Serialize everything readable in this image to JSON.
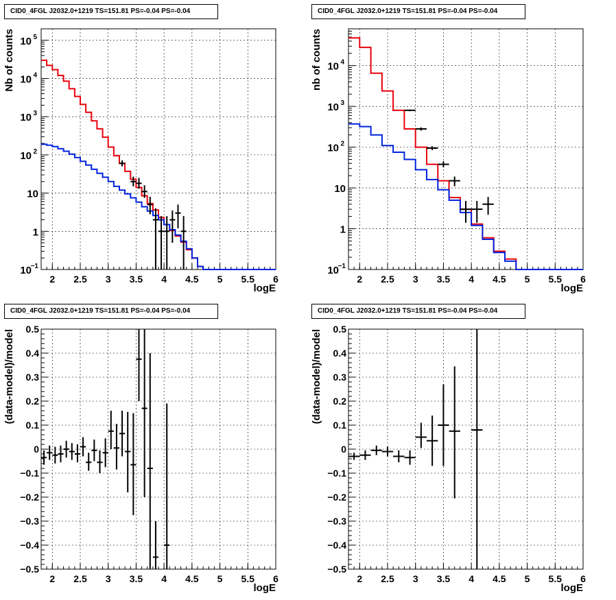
{
  "chart_data": [
    {
      "type": "line",
      "title": "CID0_4FGL J2032.0+1219 TS=151.81 PS=-0.04 PS=-0.04",
      "xlabel": "logE",
      "ylabel": "Nb of counts",
      "xlim": [
        1.8,
        6.0
      ],
      "ylim": [
        0.1,
        200000
      ],
      "yscale": "log",
      "grid": true,
      "x_ticks": [
        "2",
        "2.5",
        "3",
        "3.5",
        "4",
        "4.5",
        "5",
        "5.5",
        "6"
      ],
      "y_ticks": [
        {
          "v": 0.1,
          "base": "10",
          "exp": "−1"
        },
        {
          "v": 1,
          "base": "1",
          "exp": ""
        },
        {
          "v": 10,
          "base": "10",
          "exp": ""
        },
        {
          "v": 100,
          "base": "10",
          "exp": "2"
        },
        {
          "v": 1000,
          "base": "10",
          "exp": "3"
        },
        {
          "v": 10000,
          "base": "10",
          "exp": "4"
        },
        {
          "v": 100000,
          "base": "10",
          "exp": "5"
        }
      ],
      "bin_edges": [
        1.8,
        1.9,
        2.0,
        2.1,
        2.2,
        2.3,
        2.4,
        2.5,
        2.6,
        2.7,
        2.8,
        2.9,
        3.0,
        3.1,
        3.2,
        3.3,
        3.4,
        3.5,
        3.6,
        3.7,
        3.8,
        3.9,
        4.0,
        4.1,
        4.2,
        4.3,
        4.4,
        4.5,
        4.6,
        4.7,
        4.8,
        4.9,
        5.0,
        5.1,
        5.2,
        5.3,
        5.4,
        5.5,
        5.6,
        5.7,
        5.8,
        5.9,
        6.0
      ],
      "series": [
        {
          "color": "#e8000b",
          "values": [
            30000,
            22000,
            17000,
            12000,
            8500,
            5400,
            3400,
            2100,
            1300,
            780,
            480,
            290,
            160,
            95,
            60,
            37,
            23,
            14,
            8.5,
            5.3,
            3.6,
            2.3,
            1.5,
            1.05,
            0.75,
            0.52,
            0.33,
            0.2,
            0.12,
            0.1,
            0.1,
            0.1,
            0.1,
            0.1,
            0.1,
            0.1,
            0.1,
            0.1,
            0.1,
            0.1,
            0.1,
            0.1
          ]
        },
        {
          "color": "#0022dd",
          "values": [
            190,
            180,
            165,
            145,
            125,
            105,
            85,
            68,
            54,
            42,
            33,
            26,
            20,
            15,
            12,
            9.5,
            7.5,
            5.8,
            4.4,
            3.4,
            2.6,
            2.0,
            1.5,
            1.1,
            0.8,
            0.55,
            0.35,
            0.2,
            0.12,
            0.1,
            0.1,
            0.1,
            0.1,
            0.1,
            0.1,
            0.1,
            0.1,
            0.1,
            0.1,
            0.1,
            0.1,
            0.1
          ]
        }
      ],
      "points": [
        {
          "x": 3.25,
          "y": 60,
          "dx": 0.05,
          "lo": 50,
          "hi": 72
        },
        {
          "x": 3.45,
          "y": 20,
          "dx": 0.05,
          "lo": 15,
          "hi": 27
        },
        {
          "x": 3.55,
          "y": 18,
          "dx": 0.05,
          "lo": 13,
          "hi": 25
        },
        {
          "x": 3.65,
          "y": 11,
          "dx": 0.05,
          "lo": 7.5,
          "hi": 16
        },
        {
          "x": 3.75,
          "y": 5,
          "dx": 0.05,
          "lo": 2.8,
          "hi": 8
        },
        {
          "x": 3.85,
          "y": 2,
          "dx": 0.05,
          "lo": 0.1,
          "hi": 4
        },
        {
          "x": 3.95,
          "y": 1,
          "dx": 0.05,
          "lo": 0.1,
          "hi": 2.5
        },
        {
          "x": 4.05,
          "y": 1,
          "dx": 0.05,
          "lo": 0.1,
          "hi": 2.5
        },
        {
          "x": 4.15,
          "y": 2,
          "dx": 0.05,
          "lo": 0.5,
          "hi": 3.5
        },
        {
          "x": 4.25,
          "y": 3,
          "dx": 0.05,
          "lo": 1.2,
          "hi": 5
        },
        {
          "x": 4.35,
          "y": 1,
          "dx": 0.05,
          "lo": 0.1,
          "hi": 2.5
        }
      ]
    },
    {
      "type": "line",
      "title": "CID0_4FGL J2032.0+1219 TS=151.81 PS=-0.04 PS=-0.04",
      "xlabel": "logE",
      "ylabel": "nb of counts",
      "xlim": [
        1.8,
        6.0
      ],
      "ylim": [
        0.1,
        80000
      ],
      "yscale": "log",
      "grid": true,
      "x_ticks": [
        "2",
        "2.5",
        "3",
        "3.5",
        "4",
        "4.5",
        "5",
        "5.5",
        "6"
      ],
      "y_ticks": [
        {
          "v": 0.1,
          "base": "10",
          "exp": "−1"
        },
        {
          "v": 1,
          "base": "1",
          "exp": ""
        },
        {
          "v": 10,
          "base": "10",
          "exp": ""
        },
        {
          "v": 100,
          "base": "10",
          "exp": "2"
        },
        {
          "v": 1000,
          "base": "10",
          "exp": "3"
        },
        {
          "v": 10000,
          "base": "10",
          "exp": "4"
        }
      ],
      "bin_edges": [
        1.8,
        2.0,
        2.2,
        2.4,
        2.6,
        2.8,
        3.0,
        3.2,
        3.4,
        3.6,
        3.8,
        4.0,
        4.2,
        4.4,
        4.6,
        4.8,
        5.0,
        5.2,
        5.4,
        5.6,
        5.8,
        6.0
      ],
      "series": [
        {
          "color": "#e8000b",
          "values": [
            48000,
            28000,
            6500,
            2400,
            800,
            280,
            100,
            38,
            15,
            5.8,
            3.0,
            1.3,
            0.6,
            0.28,
            0.18,
            0.1,
            0.1,
            0.1,
            0.1,
            0.1,
            0.1
          ]
        },
        {
          "color": "#0022dd",
          "values": [
            370,
            320,
            200,
            110,
            75,
            50,
            28,
            16,
            9,
            5,
            2.5,
            1.2,
            0.55,
            0.26,
            0.16,
            0.1,
            0.1,
            0.1,
            0.1,
            0.1,
            0.1
          ]
        }
      ],
      "points": [
        {
          "x": 2.9,
          "y": 800,
          "dx": 0.1,
          "lo": 760,
          "hi": 840
        },
        {
          "x": 3.1,
          "y": 280,
          "dx": 0.1,
          "lo": 255,
          "hi": 305
        },
        {
          "x": 3.3,
          "y": 95,
          "dx": 0.1,
          "lo": 85,
          "hi": 105
        },
        {
          "x": 3.5,
          "y": 38,
          "dx": 0.1,
          "lo": 32,
          "hi": 45
        },
        {
          "x": 3.7,
          "y": 15,
          "dx": 0.1,
          "lo": 11,
          "hi": 19
        },
        {
          "x": 3.9,
          "y": 3,
          "dx": 0.1,
          "lo": 1.4,
          "hi": 4.8
        },
        {
          "x": 4.1,
          "y": 3,
          "dx": 0.1,
          "lo": 1.4,
          "hi": 4.8
        },
        {
          "x": 4.3,
          "y": 4,
          "dx": 0.1,
          "lo": 2.2,
          "hi": 6
        }
      ]
    },
    {
      "type": "scatter",
      "title": "CID0_4FGL J2032.0+1219 TS=151.81 PS=-0.04 PS=-0.04",
      "xlabel": "logE",
      "ylabel": "(data-model)/model",
      "xlim": [
        1.8,
        6.0
      ],
      "ylim": [
        -0.5,
        0.5
      ],
      "grid": true,
      "x_ticks": [
        "2",
        "2.5",
        "3",
        "3.5",
        "4",
        "4.5",
        "5",
        "5.5",
        "6"
      ],
      "y_ticks": [
        "-0.5",
        "-0.4",
        "-0.3",
        "-0.2",
        "-0.1",
        "0",
        "0.1",
        "0.2",
        "0.3",
        "0.4",
        "0.5"
      ],
      "points": [
        {
          "x": 1.85,
          "y": -0.035,
          "dx": 0.05,
          "lo": -0.065,
          "hi": -0.005
        },
        {
          "x": 1.95,
          "y": -0.015,
          "dx": 0.05,
          "lo": -0.045,
          "hi": 0.015
        },
        {
          "x": 2.05,
          "y": -0.025,
          "dx": 0.05,
          "lo": -0.06,
          "hi": 0.01
        },
        {
          "x": 2.15,
          "y": -0.02,
          "dx": 0.05,
          "lo": -0.055,
          "hi": 0.015
        },
        {
          "x": 2.25,
          "y": 0.0,
          "dx": 0.05,
          "lo": -0.035,
          "hi": 0.035
        },
        {
          "x": 2.35,
          "y": -0.01,
          "dx": 0.05,
          "lo": -0.045,
          "hi": 0.025
        },
        {
          "x": 2.45,
          "y": -0.02,
          "dx": 0.05,
          "lo": -0.055,
          "hi": 0.02
        },
        {
          "x": 2.55,
          "y": 0.01,
          "dx": 0.05,
          "lo": -0.03,
          "hi": 0.05
        },
        {
          "x": 2.65,
          "y": -0.055,
          "dx": 0.05,
          "lo": -0.09,
          "hi": -0.015
        },
        {
          "x": 2.75,
          "y": -0.005,
          "dx": 0.05,
          "lo": -0.05,
          "hi": 0.04
        },
        {
          "x": 2.85,
          "y": -0.055,
          "dx": 0.05,
          "lo": -0.1,
          "hi": -0.005
        },
        {
          "x": 2.95,
          "y": -0.015,
          "dx": 0.05,
          "lo": -0.075,
          "hi": 0.045
        },
        {
          "x": 3.05,
          "y": 0.075,
          "dx": 0.05,
          "lo": 0.0,
          "hi": 0.16
        },
        {
          "x": 3.15,
          "y": 0.005,
          "dx": 0.05,
          "lo": -0.085,
          "hi": 0.105
        },
        {
          "x": 3.25,
          "y": 0.065,
          "dx": 0.05,
          "lo": -0.03,
          "hi": 0.16
        },
        {
          "x": 3.35,
          "y": -0.01,
          "dx": 0.05,
          "lo": -0.18,
          "hi": 0.155
        },
        {
          "x": 3.45,
          "y": -0.065,
          "dx": 0.05,
          "lo": -0.275,
          "hi": 0.15
        },
        {
          "x": 3.55,
          "y": 0.375,
          "dx": 0.05,
          "lo": 0.2,
          "hi": 0.5
        },
        {
          "x": 3.65,
          "y": 0.17,
          "dx": 0.05,
          "lo": -0.2,
          "hi": 0.5
        },
        {
          "x": 3.75,
          "y": -0.08,
          "dx": 0.05,
          "lo": -0.5,
          "hi": 0.4
        },
        {
          "x": 3.85,
          "y": -0.45,
          "dx": 0.05,
          "lo": -0.5,
          "hi": -0.3
        },
        {
          "x": 4.05,
          "y": -0.4,
          "dx": 0.05,
          "lo": -0.5,
          "hi": 0.19
        }
      ]
    },
    {
      "type": "scatter",
      "title": "CID0_4FGL J2032.0+1219 TS=151.81 PS=-0.04 PS=-0.04",
      "xlabel": "logE",
      "ylabel": "(data-model)/model",
      "xlim": [
        1.8,
        6.0
      ],
      "ylim": [
        -0.5,
        0.5
      ],
      "grid": true,
      "x_ticks": [
        "2",
        "2.5",
        "3",
        "3.5",
        "4",
        "4.5",
        "5",
        "5.5",
        "6"
      ],
      "y_ticks": [
        "-0.5",
        "-0.4",
        "-0.3",
        "-0.2",
        "-0.1",
        "0",
        "0.1",
        "0.2",
        "0.3",
        "0.4",
        "0.5"
      ],
      "points": [
        {
          "x": 1.9,
          "y": -0.03,
          "dx": 0.1,
          "lo": -0.045,
          "hi": -0.015
        },
        {
          "x": 2.1,
          "y": -0.025,
          "dx": 0.1,
          "lo": -0.045,
          "hi": -0.005
        },
        {
          "x": 2.3,
          "y": -0.005,
          "dx": 0.1,
          "lo": -0.025,
          "hi": 0.015
        },
        {
          "x": 2.5,
          "y": -0.01,
          "dx": 0.1,
          "lo": -0.03,
          "hi": 0.01
        },
        {
          "x": 2.7,
          "y": -0.03,
          "dx": 0.1,
          "lo": -0.055,
          "hi": -0.005
        },
        {
          "x": 2.9,
          "y": -0.035,
          "dx": 0.1,
          "lo": -0.065,
          "hi": -0.005
        },
        {
          "x": 3.1,
          "y": 0.05,
          "dx": 0.1,
          "lo": 0.005,
          "hi": 0.11
        },
        {
          "x": 3.3,
          "y": 0.035,
          "dx": 0.1,
          "lo": -0.07,
          "hi": 0.14
        },
        {
          "x": 3.5,
          "y": 0.1,
          "dx": 0.1,
          "lo": -0.07,
          "hi": 0.27
        },
        {
          "x": 3.7,
          "y": 0.075,
          "dx": 0.1,
          "lo": -0.205,
          "hi": 0.345
        },
        {
          "x": 4.1,
          "y": 0.08,
          "dx": 0.1,
          "lo": -0.5,
          "hi": 0.5
        }
      ]
    }
  ]
}
